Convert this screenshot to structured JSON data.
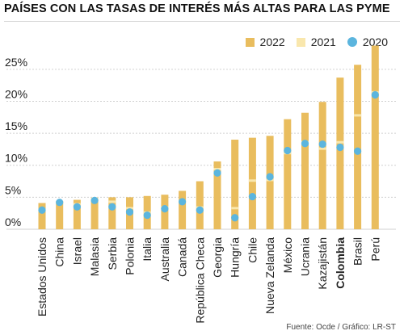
{
  "title": "PAÍSES CON LAS TASAS DE INTERÉS MÁS ALTAS PARA LAS PYME",
  "source": "Fuente: Ocde / Gráfico: LR-ST",
  "legend": [
    {
      "label": "2022",
      "color": "#e9bd5e",
      "shape": "square"
    },
    {
      "label": "2021",
      "color": "#f9e7ad",
      "shape": "square"
    },
    {
      "label": "2020",
      "color": "#5bb5de",
      "shape": "dot"
    }
  ],
  "colors": {
    "bar": "#e9bd5e",
    "band2021": "#f9e7ad",
    "dot2020": "#5bb5de",
    "grid": "#d0d0d0"
  },
  "chart_data": {
    "type": "bar",
    "title": "PAÍSES CON LAS TASAS DE INTERÉS MÁS ALTAS PARA LAS PYME",
    "xlabel": "",
    "ylabel": "",
    "ylim": [
      0,
      27.5
    ],
    "yticks": [
      0,
      5,
      10,
      15,
      20,
      25
    ],
    "ytick_labels": [
      "0%",
      "5%",
      "10%",
      "15%",
      "20%",
      "25%"
    ],
    "grid": true,
    "legend_position": "top-right",
    "categories": [
      "Estados Unidos",
      "China",
      "Israel",
      "Malasia",
      "Serbia",
      "Polonia",
      "Italia",
      "Australia",
      "Canadá",
      "República Checa",
      "Georgia",
      "Hungría",
      "Chile",
      "Nueva Zelanda",
      "México",
      "Ucrania",
      "Kazajistán",
      "Colombia",
      "Brasil",
      "Perú"
    ],
    "highlight_category": "Colombia",
    "series": [
      {
        "name": "2022",
        "values": [
          4.1,
          4.4,
          4.6,
          4.8,
          5.0,
          5.0,
          5.2,
          5.4,
          6.0,
          7.5,
          10.6,
          14.0,
          14.3,
          14.6,
          17.2,
          18.2,
          19.9,
          23.7,
          25.7,
          28.7
        ]
      },
      {
        "name": "2021",
        "values": [
          3.0,
          4.2,
          3.9,
          4.8,
          4.3,
          3.3,
          2.6,
          3.4,
          4.4,
          3.4,
          9.4,
          3.3,
          7.6,
          7.7,
          11.9,
          13.6,
          12.6,
          13.6,
          17.8,
          21.4
        ]
      },
      {
        "name": "2020",
        "values": [
          3.0,
          4.2,
          3.5,
          4.5,
          3.5,
          2.7,
          2.2,
          3.2,
          4.3,
          3.0,
          8.8,
          1.8,
          5.1,
          8.2,
          12.3,
          13.4,
          13.3,
          12.8,
          12.2,
          21.0
        ]
      }
    ]
  }
}
